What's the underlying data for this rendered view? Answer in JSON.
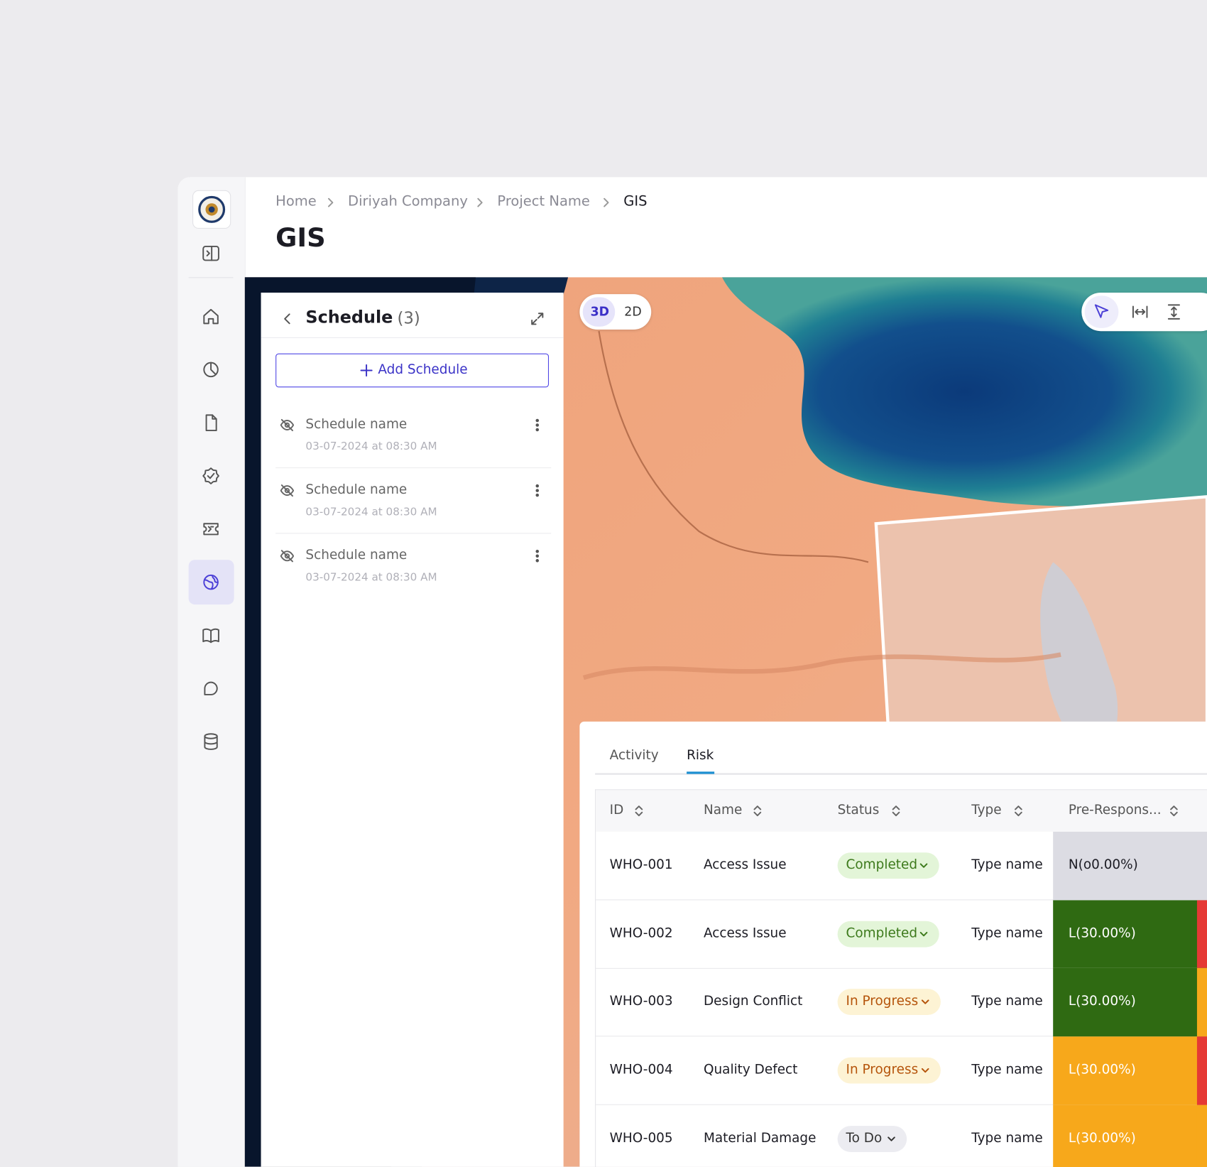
{
  "breadcrumb": [
    "Home",
    "Diriyah Company",
    "Project Name",
    "GIS"
  ],
  "page_title": "GIS",
  "schedule_panel": {
    "title": "Schedule",
    "count": "(3)",
    "add_button": "Add Schedule",
    "items": [
      {
        "name": "Schedule name",
        "date": "03-07-2024 at 08:30 AM"
      },
      {
        "name": "Schedule name",
        "date": "03-07-2024 at 08:30 AM"
      },
      {
        "name": "Schedule name",
        "date": "03-07-2024 at 08:30 AM"
      }
    ]
  },
  "map_view_toggle": [
    "3D",
    "2D"
  ],
  "tabs": [
    "Activity",
    "Risk"
  ],
  "table": {
    "headers": [
      "ID",
      "Name",
      "Status",
      "Type",
      "Pre-Respons..."
    ],
    "rows": [
      [
        "WHO-001",
        "Access Issue",
        "Completed",
        "Type name",
        "N(o0.00%)"
      ],
      [
        "WHO-002",
        "Access Issue",
        "Completed",
        "Type name",
        "L(30.00%)"
      ],
      [
        "WHO-003",
        "Design Conflict",
        "In Progress",
        "Type name",
        "L(30.00%)"
      ],
      [
        "WHO-004",
        "Quality Defect",
        "In Progress",
        "Type name",
        "L(30.00%)"
      ],
      [
        "WHO-005",
        "Material Damage",
        "To Do",
        "Type name",
        "L(30.00%)"
      ]
    ]
  }
}
